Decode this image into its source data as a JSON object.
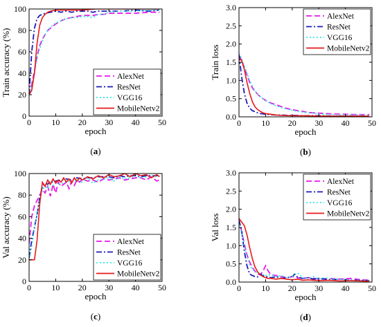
{
  "chart_data": [
    {
      "type": "line",
      "panel_label": "(a)",
      "xlabel": "epoch",
      "ylabel": "Train accuracy (%)",
      "xlim": [
        0,
        50
      ],
      "ylim": [
        0,
        100
      ],
      "xticks": [
        0,
        10,
        20,
        30,
        40,
        50
      ],
      "yticks": [
        0,
        20,
        40,
        60,
        80,
        100
      ],
      "legend_position": "bottom-right",
      "grid": false,
      "series": [
        {
          "name": "AlexNet",
          "color": "#e619e6",
          "dash": "dash",
          "x": [
            0,
            1,
            2,
            3,
            4,
            5,
            6,
            7,
            8,
            9,
            10,
            12,
            14,
            16,
            18,
            20,
            22,
            24,
            26,
            28,
            30,
            35,
            40,
            45,
            49
          ],
          "values": [
            20,
            30,
            42,
            56,
            66,
            72,
            76,
            80,
            82,
            84,
            86,
            89,
            91,
            92,
            93,
            94,
            94,
            94,
            95,
            95,
            96,
            96,
            96,
            97,
            97
          ]
        },
        {
          "name": "ResNet",
          "color": "#1a1ab5",
          "dash": "dashdot",
          "x": [
            0,
            1,
            2,
            3,
            4,
            5,
            6,
            8,
            10,
            12,
            14,
            16,
            18,
            20,
            22,
            24,
            26,
            28,
            30,
            35,
            40,
            45,
            49
          ],
          "values": [
            20,
            60,
            82,
            91,
            94,
            95,
            96,
            97,
            98,
            97,
            98,
            97,
            98,
            98,
            98,
            97,
            98,
            98,
            98,
            98,
            99,
            98,
            99
          ]
        },
        {
          "name": "VGG16",
          "color": "#33e6e6",
          "dash": "dot",
          "x": [
            0,
            1,
            2,
            3,
            4,
            5,
            6,
            7,
            8,
            9,
            10,
            12,
            14,
            16,
            18,
            20,
            22,
            24,
            26,
            28,
            30,
            35,
            40,
            45,
            49
          ],
          "values": [
            20,
            28,
            40,
            54,
            63,
            70,
            76,
            80,
            83,
            85,
            87,
            89,
            91,
            92,
            92,
            93,
            93,
            92,
            95,
            95,
            97,
            98,
            98,
            99,
            99
          ]
        },
        {
          "name": "MobileNetv2",
          "color": "#e61919",
          "dash": "solid",
          "x": [
            0,
            1,
            2,
            3,
            4,
            5,
            6,
            7,
            8,
            10,
            12,
            14,
            16,
            18,
            20,
            25,
            30,
            35,
            40,
            45,
            49
          ],
          "values": [
            20,
            24,
            40,
            68,
            85,
            92,
            95,
            97,
            98,
            99,
            99,
            99,
            99,
            99,
            99,
            100,
            100,
            100,
            100,
            100,
            100
          ]
        }
      ]
    },
    {
      "type": "line",
      "panel_label": "(b)",
      "xlabel": "epoch",
      "ylabel": "Train loss",
      "xlim": [
        0,
        50
      ],
      "ylim": [
        0,
        3.0
      ],
      "xticks": [
        0,
        10,
        20,
        30,
        40,
        50
      ],
      "yticks": [
        0.0,
        0.5,
        1.0,
        1.5,
        2.0,
        2.5,
        3.0
      ],
      "legend_position": "top-right",
      "grid": false,
      "series": [
        {
          "name": "AlexNet",
          "color": "#e619e6",
          "dash": "dash",
          "x": [
            0,
            1,
            2,
            3,
            4,
            5,
            6,
            7,
            8,
            10,
            12,
            14,
            16,
            18,
            20,
            22,
            24,
            26,
            28,
            30,
            35,
            40,
            45,
            49
          ],
          "values": [
            1.7,
            1.55,
            1.35,
            1.15,
            0.95,
            0.8,
            0.7,
            0.62,
            0.55,
            0.45,
            0.38,
            0.33,
            0.28,
            0.23,
            0.2,
            0.17,
            0.15,
            0.12,
            0.11,
            0.1,
            0.08,
            0.07,
            0.06,
            0.06
          ]
        },
        {
          "name": "ResNet",
          "color": "#1a1ab5",
          "dash": "dashdot",
          "x": [
            0,
            1,
            2,
            3,
            4,
            5,
            6,
            7,
            8,
            10,
            12,
            14,
            16,
            18,
            20,
            25,
            30,
            35,
            40,
            45,
            49
          ],
          "values": [
            1.7,
            1.1,
            0.65,
            0.38,
            0.24,
            0.17,
            0.14,
            0.11,
            0.09,
            0.07,
            0.06,
            0.05,
            0.05,
            0.04,
            0.04,
            0.03,
            0.03,
            0.02,
            0.02,
            0.02,
            0.02
          ]
        },
        {
          "name": "VGG16",
          "color": "#33e6e6",
          "dash": "dot",
          "x": [
            0,
            1,
            2,
            3,
            4,
            5,
            6,
            7,
            8,
            10,
            12,
            14,
            16,
            18,
            20,
            22,
            24,
            26,
            28,
            30,
            35,
            40,
            45,
            49
          ],
          "values": [
            1.75,
            1.6,
            1.4,
            1.2,
            1.0,
            0.85,
            0.72,
            0.62,
            0.55,
            0.44,
            0.36,
            0.3,
            0.25,
            0.21,
            0.18,
            0.15,
            0.13,
            0.11,
            0.1,
            0.08,
            0.06,
            0.05,
            0.05,
            0.04
          ]
        },
        {
          "name": "MobileNetv2",
          "color": "#e61919",
          "dash": "solid",
          "x": [
            0,
            1,
            2,
            3,
            4,
            5,
            6,
            7,
            8,
            9,
            10,
            12,
            14,
            16,
            20,
            25,
            30,
            35,
            40,
            45,
            49
          ],
          "values": [
            1.6,
            1.55,
            1.3,
            0.95,
            0.65,
            0.42,
            0.28,
            0.2,
            0.15,
            0.11,
            0.09,
            0.07,
            0.05,
            0.04,
            0.03,
            0.03,
            0.02,
            0.02,
            0.02,
            0.02,
            0.02
          ]
        }
      ]
    },
    {
      "type": "line",
      "panel_label": "(c)",
      "xlabel": "epoch",
      "ylabel": "Val accuracy (%)",
      "xlim": [
        0,
        50
      ],
      "ylim": [
        0,
        100
      ],
      "xticks": [
        0,
        10,
        20,
        30,
        40,
        50
      ],
      "yticks": [
        0,
        20,
        40,
        60,
        80,
        100
      ],
      "legend_position": "bottom-right",
      "grid": false,
      "series": [
        {
          "name": "AlexNet",
          "color": "#e619e6",
          "dash": "dash",
          "x": [
            0,
            1,
            2,
            3,
            4,
            5,
            6,
            7,
            8,
            9,
            10,
            11,
            12,
            13,
            14,
            15,
            16,
            17,
            18,
            19,
            20,
            22,
            24,
            26,
            28,
            30,
            32,
            34,
            36,
            38,
            40,
            42,
            44,
            46,
            48,
            49
          ],
          "values": [
            35,
            60,
            70,
            75,
            80,
            85,
            82,
            88,
            79,
            90,
            82,
            92,
            88,
            90,
            92,
            86,
            93,
            89,
            94,
            92,
            95,
            93,
            94,
            92,
            95,
            94,
            95,
            96,
            94,
            95,
            96,
            96,
            94,
            97,
            93,
            94
          ]
        },
        {
          "name": "ResNet",
          "color": "#1a1ab5",
          "dash": "dashdot",
          "x": [
            0,
            1,
            2,
            3,
            4,
            5,
            6,
            7,
            8,
            9,
            10,
            12,
            14,
            16,
            18,
            20,
            22,
            24,
            26,
            28,
            30,
            32,
            34,
            36,
            38,
            40,
            42,
            44,
            46,
            48,
            49
          ],
          "values": [
            22,
            38,
            50,
            62,
            78,
            88,
            91,
            90,
            93,
            92,
            93,
            94,
            95,
            94,
            96,
            95,
            96,
            96,
            97,
            97,
            97,
            96,
            98,
            97,
            98,
            98,
            97,
            98,
            98,
            98,
            98
          ]
        },
        {
          "name": "VGG16",
          "color": "#33e6e6",
          "dash": "dot",
          "x": [
            0,
            1,
            2,
            3,
            4,
            5,
            6,
            7,
            8,
            9,
            10,
            12,
            14,
            16,
            18,
            20,
            22,
            24,
            26,
            28,
            30,
            32,
            34,
            36,
            38,
            40,
            42,
            44,
            46,
            48,
            49
          ],
          "values": [
            20,
            32,
            48,
            62,
            75,
            85,
            88,
            86,
            90,
            89,
            91,
            90,
            93,
            92,
            94,
            92,
            96,
            91,
            94,
            95,
            96,
            93,
            97,
            95,
            96,
            98,
            96,
            97,
            98,
            97,
            98
          ]
        },
        {
          "name": "MobileNetv2",
          "color": "#e61919",
          "dash": "solid",
          "x": [
            0,
            1,
            2,
            3,
            4,
            5,
            6,
            7,
            8,
            9,
            10,
            11,
            12,
            13,
            14,
            15,
            16,
            17,
            18,
            19,
            20,
            22,
            24,
            26,
            28,
            30,
            32,
            34,
            36,
            38,
            40,
            42,
            44,
            46,
            48,
            49
          ],
          "values": [
            20,
            20,
            20,
            38,
            72,
            92,
            88,
            94,
            90,
            95,
            91,
            94,
            92,
            96,
            92,
            95,
            91,
            96,
            93,
            96,
            94,
            97,
            95,
            98,
            96,
            99,
            97,
            98,
            100,
            97,
            100,
            98,
            99,
            96,
            99,
            97
          ]
        }
      ]
    },
    {
      "type": "line",
      "panel_label": "(d)",
      "xlabel": "epoch",
      "ylabel": "Val loss",
      "xlim": [
        0,
        50
      ],
      "ylim": [
        0,
        3.0
      ],
      "xticks": [
        0,
        10,
        20,
        30,
        40,
        50
      ],
      "yticks": [
        0.0,
        0.5,
        1.0,
        1.5,
        2.0,
        2.5,
        3.0
      ],
      "legend_position": "top-right",
      "grid": false,
      "series": [
        {
          "name": "AlexNet",
          "color": "#e619e6",
          "dash": "dash",
          "x": [
            0,
            1,
            2,
            3,
            4,
            5,
            6,
            7,
            8,
            9,
            10,
            11,
            12,
            14,
            16,
            18,
            20,
            22,
            24,
            26,
            28,
            30,
            34,
            38,
            42,
            46,
            49
          ],
          "values": [
            1.7,
            1.4,
            1.05,
            0.75,
            0.55,
            0.4,
            0.3,
            0.22,
            0.2,
            0.3,
            0.45,
            0.3,
            0.2,
            0.18,
            0.15,
            0.12,
            0.15,
            0.12,
            0.1,
            0.12,
            0.1,
            0.08,
            0.1,
            0.08,
            0.1,
            0.06,
            0.05
          ]
        },
        {
          "name": "ResNet",
          "color": "#1a1ab5",
          "dash": "dashdot",
          "x": [
            0,
            1,
            2,
            3,
            4,
            5,
            6,
            7,
            8,
            10,
            12,
            14,
            16,
            18,
            20,
            21,
            22,
            24,
            26,
            28,
            30,
            34,
            38,
            42,
            46,
            49
          ],
          "values": [
            1.7,
            1.4,
            0.85,
            0.45,
            0.22,
            0.18,
            0.15,
            0.14,
            0.22,
            0.15,
            0.12,
            0.15,
            0.1,
            0.12,
            0.15,
            0.22,
            0.13,
            0.1,
            0.12,
            0.08,
            0.1,
            0.06,
            0.08,
            0.05,
            0.05,
            0.04
          ]
        },
        {
          "name": "VGG16",
          "color": "#33e6e6",
          "dash": "dot",
          "x": [
            0,
            1,
            2,
            3,
            4,
            5,
            6,
            7,
            8,
            10,
            12,
            14,
            16,
            18,
            20,
            22,
            24,
            26,
            28,
            30,
            32,
            36,
            40,
            44,
            49
          ],
          "values": [
            1.6,
            1.35,
            1.0,
            0.7,
            0.48,
            0.35,
            0.3,
            0.25,
            0.22,
            0.18,
            0.2,
            0.15,
            0.18,
            0.12,
            0.15,
            0.25,
            0.12,
            0.1,
            0.15,
            0.08,
            0.12,
            0.08,
            0.06,
            0.05,
            0.03
          ]
        },
        {
          "name": "MobileNetv2",
          "color": "#e61919",
          "dash": "solid",
          "x": [
            0,
            1,
            2,
            3,
            4,
            5,
            6,
            7,
            8,
            9,
            10,
            11,
            12,
            14,
            16,
            18,
            20,
            22,
            24,
            26,
            28,
            30,
            34,
            38,
            42,
            46,
            49
          ],
          "values": [
            1.75,
            1.65,
            1.55,
            1.3,
            0.95,
            0.65,
            0.42,
            0.28,
            0.2,
            0.15,
            0.12,
            0.1,
            0.1,
            0.08,
            0.1,
            0.08,
            0.06,
            0.08,
            0.05,
            0.06,
            0.05,
            0.04,
            0.05,
            0.03,
            0.04,
            0.03,
            0.02
          ]
        }
      ]
    }
  ]
}
